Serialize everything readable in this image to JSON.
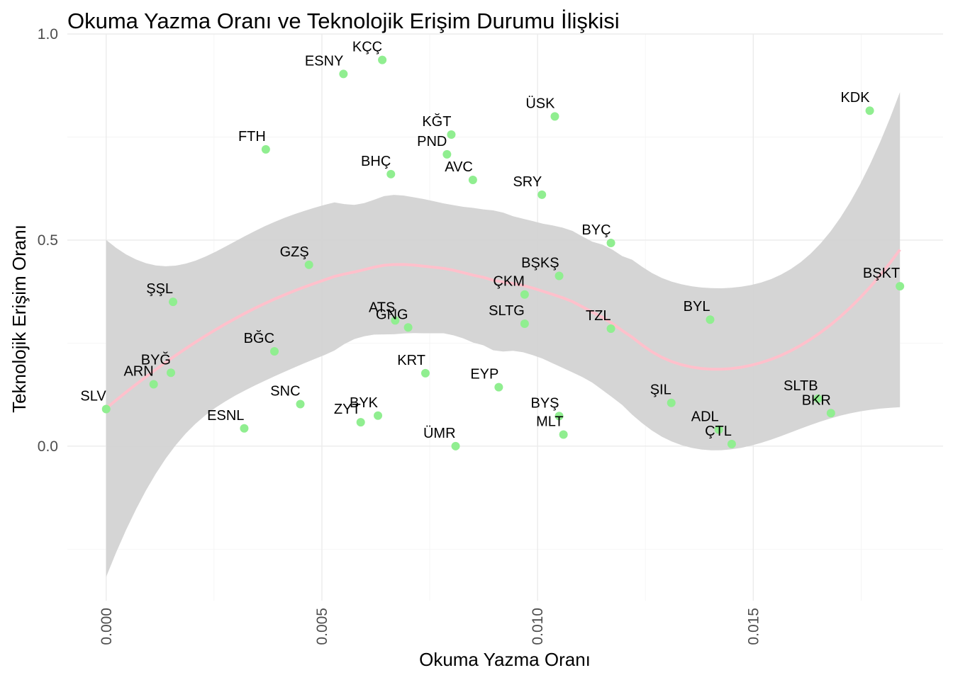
{
  "chart_data": {
    "type": "scatter",
    "title": "Okuma Yazma Oranı ve Teknolojik Erişim Durumu İlişkisi",
    "xlabel": "Okuma Yazma Oranı",
    "ylabel": "Teknolojik Erişim Oranı",
    "xlim": [
      -0.0009,
      0.0194
    ],
    "ylim": [
      -0.375,
      1.0
    ],
    "xticks": [
      0.0,
      0.005,
      0.01,
      0.015
    ],
    "xtick_labels": [
      "0.000",
      "0.005",
      "0.010",
      "0.015"
    ],
    "yticks": [
      0.0,
      0.5,
      1.0
    ],
    "ytick_labels": [
      "0.0",
      "0.5",
      "1.0"
    ],
    "grid": true,
    "point_color": "#90ee90",
    "smooth_color": "#ffc0cb",
    "ribbon_color": "#d3d3d3",
    "points": [
      {
        "label": "SLV",
        "x": 0.0,
        "y": 0.09
      },
      {
        "label": "ARN",
        "x": 0.0011,
        "y": 0.15
      },
      {
        "label": "BYĞ",
        "x": 0.0015,
        "y": 0.178
      },
      {
        "label": "ŞŞL",
        "x": 0.00155,
        "y": 0.35
      },
      {
        "label": "ESNL",
        "x": 0.0032,
        "y": 0.043
      },
      {
        "label": "FTH",
        "x": 0.0037,
        "y": 0.72
      },
      {
        "label": "BĞC",
        "x": 0.0039,
        "y": 0.23
      },
      {
        "label": "SNC",
        "x": 0.0045,
        "y": 0.102
      },
      {
        "label": "GZŞ",
        "x": 0.0047,
        "y": 0.44
      },
      {
        "label": "ESNY",
        "x": 0.0055,
        "y": 0.903
      },
      {
        "label": "ZYT",
        "x": 0.0059,
        "y": 0.058
      },
      {
        "label": "BYK",
        "x": 0.0063,
        "y": 0.074
      },
      {
        "label": "KÇÇ",
        "x": 0.0064,
        "y": 0.937
      },
      {
        "label": "BHÇ",
        "x": 0.0066,
        "y": 0.66
      },
      {
        "label": "ATŞ",
        "x": 0.0067,
        "y": 0.305
      },
      {
        "label": "GNG",
        "x": 0.007,
        "y": 0.288
      },
      {
        "label": "KRT",
        "x": 0.0074,
        "y": 0.177
      },
      {
        "label": "PND",
        "x": 0.0079,
        "y": 0.708
      },
      {
        "label": "KĞT",
        "x": 0.008,
        "y": 0.756
      },
      {
        "label": "ÜMR",
        "x": 0.0081,
        "y": 0.0
      },
      {
        "label": "AVC",
        "x": 0.0085,
        "y": 0.646
      },
      {
        "label": "EYP",
        "x": 0.0091,
        "y": 0.143
      },
      {
        "label": "ÇKM",
        "x": 0.0097,
        "y": 0.368
      },
      {
        "label": "SLTG",
        "x": 0.0097,
        "y": 0.297
      },
      {
        "label": "SRY",
        "x": 0.0101,
        "y": 0.61
      },
      {
        "label": "ÜSK",
        "x": 0.0104,
        "y": 0.8
      },
      {
        "label": "BŞKŞ",
        "x": 0.0105,
        "y": 0.413
      },
      {
        "label": "BYŞ",
        "x": 0.0105,
        "y": 0.073
      },
      {
        "label": "MLT",
        "x": 0.0106,
        "y": 0.028
      },
      {
        "label": "BYÇ",
        "x": 0.0117,
        "y": 0.493
      },
      {
        "label": "TZL",
        "x": 0.0117,
        "y": 0.285
      },
      {
        "label": "ŞIL",
        "x": 0.0131,
        "y": 0.105
      },
      {
        "label": "BYL",
        "x": 0.014,
        "y": 0.307
      },
      {
        "label": "ADL",
        "x": 0.0142,
        "y": 0.04
      },
      {
        "label": "ÇTL",
        "x": 0.0145,
        "y": 0.005
      },
      {
        "label": "SLTB",
        "x": 0.0165,
        "y": 0.115
      },
      {
        "label": "BKR",
        "x": 0.0168,
        "y": 0.08
      },
      {
        "label": "KDK",
        "x": 0.0177,
        "y": 0.814
      },
      {
        "label": "BŞKT",
        "x": 0.0184,
        "y": 0.388
      }
    ]
  }
}
